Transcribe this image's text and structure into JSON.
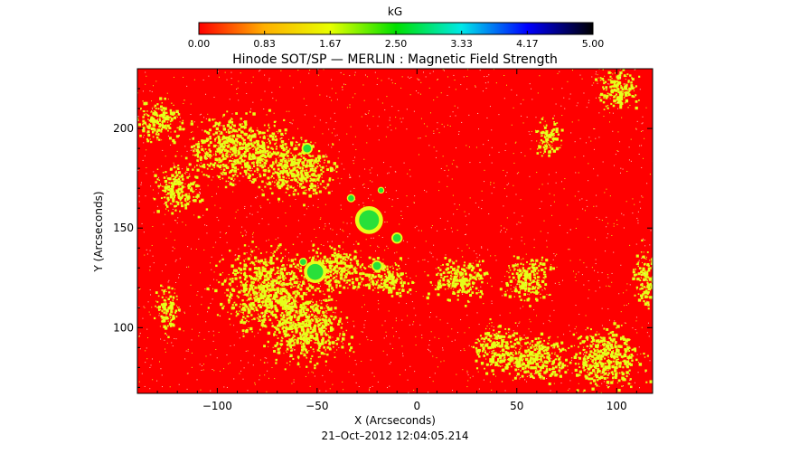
{
  "chart_data": {
    "type": "heatmap",
    "title": "Hinode SOT/SP — MERLIN : Magnetic Field Strength",
    "subtitle": "21–Oct–2012 12:04:05.214",
    "xlabel": "X (Arcseconds)",
    "ylabel": "Y (Arcseconds)",
    "xlim": [
      -140,
      118
    ],
    "ylim": [
      67,
      230
    ],
    "x_ticks": [
      -100,
      -50,
      0,
      50,
      100
    ],
    "y_ticks": [
      100,
      150,
      200
    ],
    "colorbar": {
      "label": "kG",
      "range": [
        0.0,
        5.0
      ],
      "ticks": [
        "0.00",
        "0.83",
        "1.67",
        "2.50",
        "3.33",
        "4.17",
        "5.00"
      ],
      "colors": [
        "#ff0000",
        "#ffb000",
        "#e8ff00",
        "#00e000",
        "#00e8e8",
        "#0000ff",
        "#000000"
      ]
    },
    "field_colors": {
      "background": "#ff0000",
      "network": "#e6ff1a",
      "strong": "#28e03a"
    },
    "network_regions": [
      {
        "x": -90,
        "y": 190,
        "w": 45,
        "h": 28
      },
      {
        "x": -60,
        "y": 180,
        "w": 30,
        "h": 25
      },
      {
        "x": -130,
        "y": 205,
        "w": 20,
        "h": 18
      },
      {
        "x": -75,
        "y": 120,
        "w": 40,
        "h": 35
      },
      {
        "x": -55,
        "y": 100,
        "w": 35,
        "h": 30
      },
      {
        "x": -40,
        "y": 130,
        "w": 28,
        "h": 20
      },
      {
        "x": -15,
        "y": 125,
        "w": 20,
        "h": 15
      },
      {
        "x": 20,
        "y": 125,
        "w": 25,
        "h": 18
      },
      {
        "x": 55,
        "y": 125,
        "w": 20,
        "h": 20
      },
      {
        "x": 60,
        "y": 85,
        "w": 30,
        "h": 20
      },
      {
        "x": 95,
        "y": 85,
        "w": 30,
        "h": 25
      },
      {
        "x": 40,
        "y": 90,
        "w": 20,
        "h": 20
      },
      {
        "x": -120,
        "y": 170,
        "w": 20,
        "h": 20
      },
      {
        "x": 100,
        "y": 220,
        "w": 18,
        "h": 18
      },
      {
        "x": 65,
        "y": 195,
        "w": 12,
        "h": 15
      },
      {
        "x": 115,
        "y": 125,
        "w": 12,
        "h": 25
      },
      {
        "x": -125,
        "y": 110,
        "w": 10,
        "h": 20
      }
    ],
    "strong_spots": [
      {
        "x": -24,
        "y": 154,
        "r": 5
      },
      {
        "x": -51,
        "y": 128,
        "r": 4
      },
      {
        "x": -55,
        "y": 190,
        "r": 2
      },
      {
        "x": -10,
        "y": 145,
        "r": 2
      },
      {
        "x": -20,
        "y": 131,
        "r": 2
      },
      {
        "x": -33,
        "y": 165,
        "r": 1.5
      },
      {
        "x": -18,
        "y": 169,
        "r": 1.2
      },
      {
        "x": -57,
        "y": 133,
        "r": 1.5
      }
    ]
  }
}
